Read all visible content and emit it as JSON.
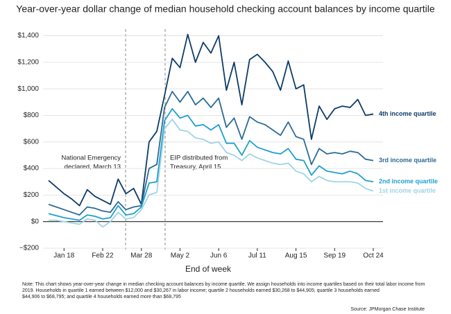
{
  "chart_data": {
    "type": "line",
    "title": "Year-over-year dollar change of median household checking account balances by income quartile",
    "x_label": "End of week",
    "categories": [
      null,
      null,
      "Jan 18",
      null,
      null,
      null,
      null,
      "Feb 22",
      null,
      null,
      null,
      null,
      "Mar 28",
      null,
      null,
      null,
      null,
      "May 2",
      null,
      null,
      null,
      null,
      "Jun 6",
      null,
      null,
      null,
      null,
      "Jul 11",
      null,
      null,
      null,
      null,
      "Aug 15",
      null,
      null,
      null,
      null,
      "Sep 19",
      null,
      null,
      null,
      null,
      "Oct 24"
    ],
    "series": [
      {
        "name": "4th income quartile",
        "color": "#0d3b66",
        "values": [
          310,
          260,
          210,
          170,
          120,
          240,
          190,
          160,
          130,
          320,
          210,
          250,
          130,
          600,
          680,
          950,
          1230,
          1160,
          1410,
          1200,
          1350,
          1270,
          1400,
          990,
          1200,
          880,
          1220,
          1260,
          1200,
          1130,
          990,
          1210,
          1000,
          1030,
          620,
          870,
          770,
          850,
          870,
          860,
          920,
          800,
          810
        ]
      },
      {
        "name": "3rd income quartile",
        "color": "#2b6a95",
        "values": [
          130,
          110,
          90,
          70,
          50,
          110,
          100,
          80,
          70,
          150,
          90,
          110,
          120,
          400,
          430,
          860,
          980,
          900,
          980,
          880,
          930,
          860,
          930,
          710,
          780,
          620,
          790,
          750,
          730,
          690,
          650,
          750,
          640,
          620,
          430,
          550,
          510,
          520,
          510,
          530,
          520,
          470,
          460
        ]
      },
      {
        "name": "2nd income quartile",
        "color": "#1d9fcf",
        "values": [
          60,
          45,
          30,
          20,
          10,
          50,
          40,
          20,
          30,
          120,
          50,
          60,
          110,
          290,
          300,
          760,
          850,
          780,
          800,
          720,
          730,
          690,
          730,
          590,
          590,
          500,
          610,
          560,
          540,
          520,
          510,
          550,
          470,
          460,
          350,
          420,
          380,
          370,
          360,
          380,
          360,
          310,
          300
        ]
      },
      {
        "name": "1st income quartile",
        "color": "#9fd4e4",
        "values": [
          10,
          10,
          0,
          -10,
          -20,
          20,
          10,
          -40,
          0,
          70,
          20,
          30,
          90,
          200,
          220,
          700,
          770,
          690,
          680,
          630,
          620,
          590,
          600,
          520,
          500,
          460,
          510,
          480,
          460,
          440,
          430,
          440,
          380,
          360,
          300,
          340,
          310,
          300,
          300,
          300,
          290,
          250,
          230
        ]
      }
    ],
    "ylim": [
      -200,
      1450
    ],
    "yticks": [
      {
        "value": -200,
        "label": "−$200"
      },
      {
        "value": 0,
        "label": "$0"
      },
      {
        "value": 200,
        "label": "$200"
      },
      {
        "value": 400,
        "label": "$400"
      },
      {
        "value": 600,
        "label": "$600"
      },
      {
        "value": 800,
        "label": "$800"
      },
      {
        "value": 1000,
        "label": "$1,000"
      },
      {
        "value": 1200,
        "label": "$1,200"
      },
      {
        "value": 1400,
        "label": "$1,400"
      }
    ],
    "grid": true,
    "annotations": [
      {
        "lines": [
          "National Emergency",
          "declared, March 13"
        ]
      },
      {
        "lines": [
          "EIP distributed from",
          "Treasury, April 15"
        ]
      }
    ],
    "note": [
      "Note: This chart shows year-over-year change in median checking account balances by income quartile. We assign households into income quartiles based on their total labor income from",
      "2019. Households in quartile 1 earned between $12,000 and $30,267 in labor income; quartile 2 households earned $30,268 to $44,905; quartile 3 households earned",
      "$44,906 to $68,795; and quartile 4 households earned more than $68,795"
    ],
    "source": "Source: JPMorgan Chase Institute"
  }
}
